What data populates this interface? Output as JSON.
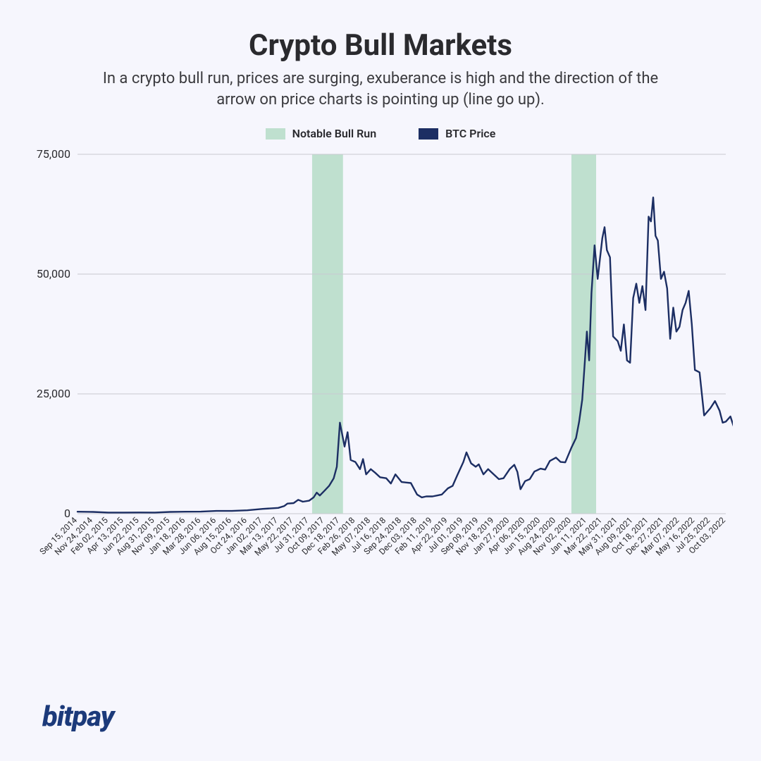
{
  "title": "Crypto Bull Markets",
  "subtitle": "In a crypto bull run, prices are surging, exuberance is high and the direction of the arrow on price charts is pointing up (line go up).",
  "legend": {
    "bull_run": {
      "label": "Notable Bull Run",
      "color": "#bfe0cf"
    },
    "btc_price": {
      "label": "BTC Price",
      "color": "#1c2e63"
    }
  },
  "logo_text": "bitpay",
  "chart": {
    "type": "line",
    "background_color": "#f6f6fd",
    "grid_color": "#c8c8d0",
    "line_color": "#1c2e63",
    "line_width": 2.4,
    "bull_run_fill": "#bfe0cf",
    "ylim": [
      0,
      75000
    ],
    "yticks": [
      0,
      25000,
      50000,
      75000
    ],
    "ytick_labels": [
      "0",
      "25,000",
      "50,000",
      "75,000"
    ],
    "x_labels": [
      "Sep 15, 2014",
      "Nov 24, 2014",
      "Feb 02, 2015",
      "Apr 13, 2015",
      "Jun 22, 2015",
      "Aug 31, 2015",
      "Nov 09, 2015",
      "Jan 18, 2016",
      "Mar 28, 2016",
      "Jun 06, 2016",
      "Aug 15, 2016",
      "Oct 24, 2016",
      "Jan 02, 2017",
      "Mar 13, 2017",
      "May 22, 2017",
      "Jul 31, 2017",
      "Oct 09, 2017",
      "Dec 18, 2017",
      "Feb 26, 2018",
      "May 07, 2018",
      "Jul 16, 2018",
      "Sep 24, 2018",
      "Dec 03, 2018",
      "Feb 11, 2019",
      "Apr 22, 2019",
      "Jul 01, 2019",
      "Sep 09, 2019",
      "Nov 18, 2019",
      "Jan 27, 2020",
      "Apr 06, 2020",
      "Jun 15, 2020",
      "Aug 24, 2020",
      "Nov 02, 2020",
      "Jan 11, 2021",
      "Mar 22, 2021",
      "May 31, 2021",
      "Aug 09, 2021",
      "Oct 18, 2021",
      "Dec 27, 2021",
      "Mar 07, 2022",
      "May 16, 2022",
      "Jul 25, 2022",
      "Oct 03, 2022"
    ],
    "bull_runs": [
      {
        "start_idx": 15.2,
        "end_idx": 17.2
      },
      {
        "start_idx": 32.0,
        "end_idx": 33.6
      }
    ],
    "series": [
      410,
      370,
      240,
      240,
      250,
      230,
      370,
      410,
      420,
      580,
      580,
      700,
      1000,
      1200,
      2200,
      2700,
      4800,
      19000,
      10800,
      9300,
      7400,
      6600,
      4000,
      3600,
      5300,
      10800,
      10300,
      8100,
      9300,
      6800,
      9400,
      11700,
      13800,
      38000,
      57500,
      36000,
      45000,
      62000,
      50500,
      39000,
      30000,
      22000,
      19200
    ],
    "detail_series": [
      [
        0,
        410
      ],
      [
        1,
        370
      ],
      [
        2,
        240
      ],
      [
        3,
        240
      ],
      [
        4,
        250
      ],
      [
        5,
        230
      ],
      [
        6,
        370
      ],
      [
        7,
        410
      ],
      [
        8,
        420
      ],
      [
        9,
        580
      ],
      [
        10,
        580
      ],
      [
        11,
        700
      ],
      [
        12,
        1000
      ],
      [
        13,
        1200
      ],
      [
        13.4,
        1600
      ],
      [
        13.6,
        2100
      ],
      [
        14,
        2200
      ],
      [
        14.3,
        2900
      ],
      [
        14.6,
        2500
      ],
      [
        15,
        2700
      ],
      [
        15.3,
        3400
      ],
      [
        15.5,
        4400
      ],
      [
        15.7,
        3800
      ],
      [
        16,
        4800
      ],
      [
        16.3,
        5800
      ],
      [
        16.6,
        7400
      ],
      [
        16.8,
        9800
      ],
      [
        17,
        19000
      ],
      [
        17.15,
        16500
      ],
      [
        17.3,
        14000
      ],
      [
        17.5,
        17000
      ],
      [
        17.7,
        11200
      ],
      [
        18,
        10800
      ],
      [
        18.3,
        9300
      ],
      [
        18.5,
        11400
      ],
      [
        18.7,
        8200
      ],
      [
        19,
        9300
      ],
      [
        19.3,
        8500
      ],
      [
        19.6,
        7600
      ],
      [
        20,
        7400
      ],
      [
        20.3,
        6300
      ],
      [
        20.6,
        8200
      ],
      [
        21,
        6600
      ],
      [
        21.3,
        6500
      ],
      [
        21.6,
        6400
      ],
      [
        22,
        4000
      ],
      [
        22.3,
        3400
      ],
      [
        22.6,
        3600
      ],
      [
        23,
        3600
      ],
      [
        23.3,
        3800
      ],
      [
        23.6,
        4000
      ],
      [
        24,
        5300
      ],
      [
        24.3,
        5800
      ],
      [
        24.6,
        8000
      ],
      [
        25,
        10800
      ],
      [
        25.2,
        12800
      ],
      [
        25.5,
        10500
      ],
      [
        25.8,
        9800
      ],
      [
        26,
        10300
      ],
      [
        26.3,
        8200
      ],
      [
        26.6,
        9300
      ],
      [
        27,
        8100
      ],
      [
        27.3,
        7200
      ],
      [
        27.6,
        7400
      ],
      [
        28,
        9300
      ],
      [
        28.3,
        10200
      ],
      [
        28.5,
        8700
      ],
      [
        28.7,
        5100
      ],
      [
        29,
        6800
      ],
      [
        29.3,
        7200
      ],
      [
        29.6,
        8800
      ],
      [
        30,
        9400
      ],
      [
        30.3,
        9200
      ],
      [
        30.6,
        11000
      ],
      [
        31,
        11700
      ],
      [
        31.3,
        10800
      ],
      [
        31.6,
        10700
      ],
      [
        32,
        13800
      ],
      [
        32.3,
        15800
      ],
      [
        32.5,
        19200
      ],
      [
        32.7,
        23800
      ],
      [
        33,
        38000
      ],
      [
        33.15,
        32000
      ],
      [
        33.3,
        46000
      ],
      [
        33.5,
        56000
      ],
      [
        33.7,
        49000
      ],
      [
        34,
        57500
      ],
      [
        34.15,
        59800
      ],
      [
        34.3,
        55000
      ],
      [
        34.5,
        53500
      ],
      [
        34.7,
        37000
      ],
      [
        35,
        36000
      ],
      [
        35.2,
        34000
      ],
      [
        35.4,
        39500
      ],
      [
        35.6,
        32000
      ],
      [
        35.8,
        31500
      ],
      [
        36,
        45000
      ],
      [
        36.2,
        48000
      ],
      [
        36.4,
        44000
      ],
      [
        36.6,
        47500
      ],
      [
        36.8,
        42500
      ],
      [
        37,
        62000
      ],
      [
        37.15,
        61000
      ],
      [
        37.3,
        66000
      ],
      [
        37.45,
        58000
      ],
      [
        37.6,
        57000
      ],
      [
        37.8,
        49000
      ],
      [
        38,
        50500
      ],
      [
        38.2,
        47000
      ],
      [
        38.4,
        36500
      ],
      [
        38.6,
        43000
      ],
      [
        38.8,
        38000
      ],
      [
        39,
        39000
      ],
      [
        39.2,
        42500
      ],
      [
        39.4,
        44000
      ],
      [
        39.6,
        46500
      ],
      [
        39.8,
        39500
      ],
      [
        40,
        30000
      ],
      [
        40.3,
        29500
      ],
      [
        40.6,
        20500
      ],
      [
        41,
        22000
      ],
      [
        41.3,
        23500
      ],
      [
        41.6,
        21500
      ],
      [
        41.8,
        19000
      ],
      [
        42,
        19200
      ],
      [
        42.3,
        20300
      ],
      [
        42.5,
        18300
      ]
    ]
  }
}
